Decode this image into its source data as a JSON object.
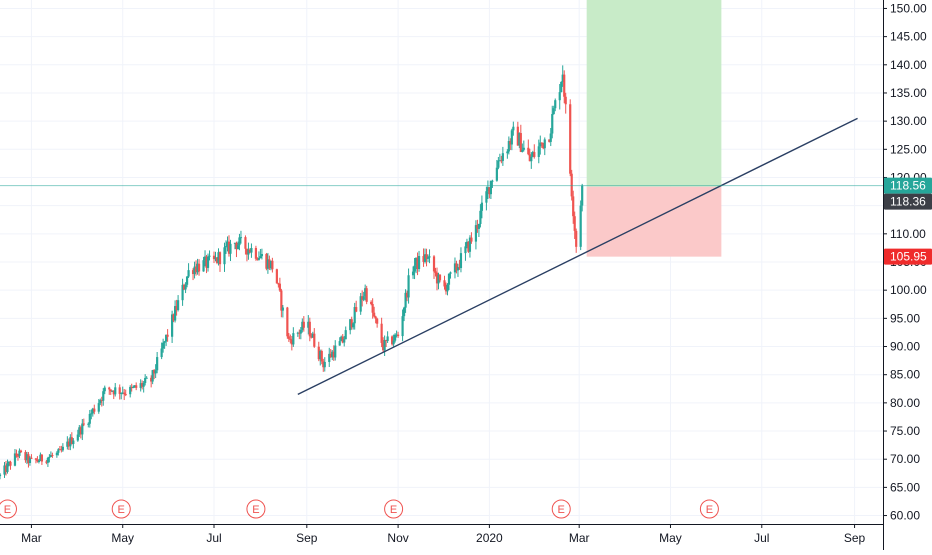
{
  "chart_data": {
    "type": "candlestick",
    "symbol_hint": "",
    "xlim": [
      "2019-02-08",
      "2020-09-20"
    ],
    "ylim": [
      58.5,
      151.5
    ],
    "y_ticks": [
      "60.00",
      "65.00",
      "70.00",
      "75.00",
      "80.00",
      "85.00",
      "90.00",
      "95.00",
      "100.00",
      "105.00",
      "110.00",
      "115.00",
      "120.00",
      "125.00",
      "130.00",
      "135.00",
      "140.00",
      "145.00",
      "150.00"
    ],
    "x_ticks": [
      {
        "label": "Mar",
        "date": "2019-03-01"
      },
      {
        "label": "May",
        "date": "2019-05-01"
      },
      {
        "label": "Jul",
        "date": "2019-07-01"
      },
      {
        "label": "Sep",
        "date": "2019-09-01"
      },
      {
        "label": "Nov",
        "date": "2019-11-01"
      },
      {
        "label": "2020",
        "date": "2020-01-01"
      },
      {
        "label": "Mar",
        "date": "2020-03-01"
      },
      {
        "label": "May",
        "date": "2020-05-01"
      },
      {
        "label": "Jul",
        "date": "2020-07-01"
      },
      {
        "label": "Sep",
        "date": "2020-09-01"
      }
    ],
    "grid": true,
    "colors": {
      "up": "#26a69a",
      "down": "#ef5350",
      "trendline": "#2a3f63",
      "profit_zone": "#c8ebc8",
      "loss_zone": "#fbc9c9",
      "price_line": "#26a69a",
      "earnings": "#ef5350"
    },
    "price_path": [
      {
        "date": "2019-02-08",
        "close": 67.0
      },
      {
        "date": "2019-02-20",
        "close": 71.0
      },
      {
        "date": "2019-03-01",
        "close": 69.5
      },
      {
        "date": "2019-03-20",
        "close": 71.0
      },
      {
        "date": "2019-04-05",
        "close": 76.0
      },
      {
        "date": "2019-04-20",
        "close": 82.5
      },
      {
        "date": "2019-05-05",
        "close": 82.0
      },
      {
        "date": "2019-05-20",
        "close": 84.0
      },
      {
        "date": "2019-06-01",
        "close": 93.0
      },
      {
        "date": "2019-06-15",
        "close": 104.0
      },
      {
        "date": "2019-07-01",
        "close": 105.0
      },
      {
        "date": "2019-07-15",
        "close": 108.5
      },
      {
        "date": "2019-07-28",
        "close": 107.0
      },
      {
        "date": "2019-08-10",
        "close": 104.0
      },
      {
        "date": "2019-08-20",
        "close": 91.0
      },
      {
        "date": "2019-09-01",
        "close": 94.0
      },
      {
        "date": "2019-09-12",
        "close": 87.0
      },
      {
        "date": "2019-09-25",
        "close": 91.0
      },
      {
        "date": "2019-10-10",
        "close": 100.0
      },
      {
        "date": "2019-10-22",
        "close": 90.0
      },
      {
        "date": "2019-11-01",
        "close": 92.0
      },
      {
        "date": "2019-11-10",
        "close": 104.0
      },
      {
        "date": "2019-11-20",
        "close": 106.0
      },
      {
        "date": "2019-12-01",
        "close": 100.0
      },
      {
        "date": "2019-12-10",
        "close": 104.0
      },
      {
        "date": "2019-12-22",
        "close": 110.0
      },
      {
        "date": "2020-01-05",
        "close": 122.0
      },
      {
        "date": "2020-01-18",
        "close": 128.0
      },
      {
        "date": "2020-01-28",
        "close": 123.0
      },
      {
        "date": "2020-02-10",
        "close": 128.0
      },
      {
        "date": "2020-02-19",
        "close": 139.0
      },
      {
        "date": "2020-02-24",
        "close": 121.0
      },
      {
        "date": "2020-02-28",
        "close": 108.0
      },
      {
        "date": "2020-03-03",
        "close": 118.56
      }
    ],
    "earnings_dates": [
      "2019-02-13",
      "2019-04-30",
      "2019-07-29",
      "2019-10-29",
      "2020-02-18",
      "2020-05-27"
    ],
    "earnings_label": "E",
    "trendline": {
      "start": {
        "date": "2019-08-26",
        "price": 81.5
      },
      "end": {
        "date": "2020-09-03",
        "price": 130.5
      }
    },
    "position": {
      "start_date": "2020-03-06",
      "end_date": "2020-06-04",
      "entry": 118.36,
      "stop": 105.95,
      "target": 151.5
    },
    "price_labels": [
      {
        "value": "118.56",
        "price": 118.56,
        "bg": "#26a69a",
        "fg": "#ffffff"
      },
      {
        "value": "118.36",
        "price": 118.36,
        "bg": "#3c3f47",
        "fg": "#ffffff"
      },
      {
        "value": "105.95",
        "price": 105.95,
        "bg": "#ef2b2b",
        "fg": "#ffffff"
      }
    ]
  }
}
